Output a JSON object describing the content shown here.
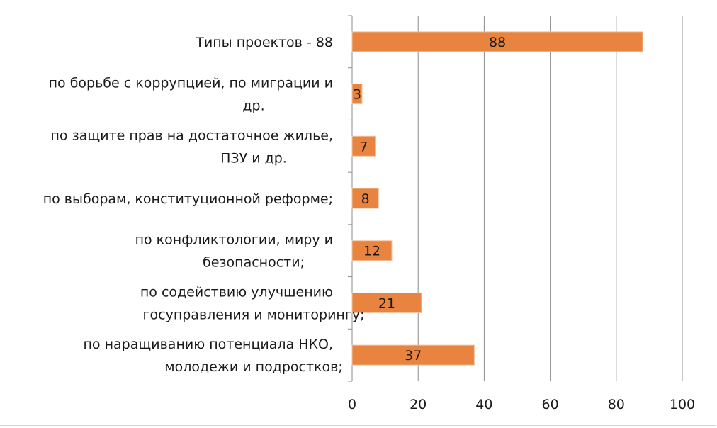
{
  "chart_data": {
    "type": "bar",
    "orientation": "horizontal",
    "categories": [
      [
        "Типы проектов - 88"
      ],
      [
        "по борьбе с коррупцией, по миграции и",
        "др."
      ],
      [
        "по защите прав на достаточное жилье,",
        "ПЗУ и др."
      ],
      [
        "по выборам, конституционной реформе;"
      ],
      [
        "по конфликтологии, миру и",
        "безопасности;"
      ],
      [
        "по содействию улучшению",
        "госуправления и мониторингу;"
      ],
      [
        "по наращиванию потенциала НКО,",
        "молодежи и подростков;"
      ]
    ],
    "values": [
      88,
      3,
      7,
      8,
      12,
      21,
      37
    ],
    "data_labels": [
      "88",
      "3",
      "7",
      "8",
      "12",
      "21",
      "37"
    ],
    "xlim": [
      0,
      100
    ],
    "x_ticks": [
      0,
      20,
      40,
      60,
      80,
      100
    ],
    "grid": "vertical",
    "legend": "none",
    "bar_color": "#E8843F",
    "bar_edge_color": "#F2C29E"
  }
}
